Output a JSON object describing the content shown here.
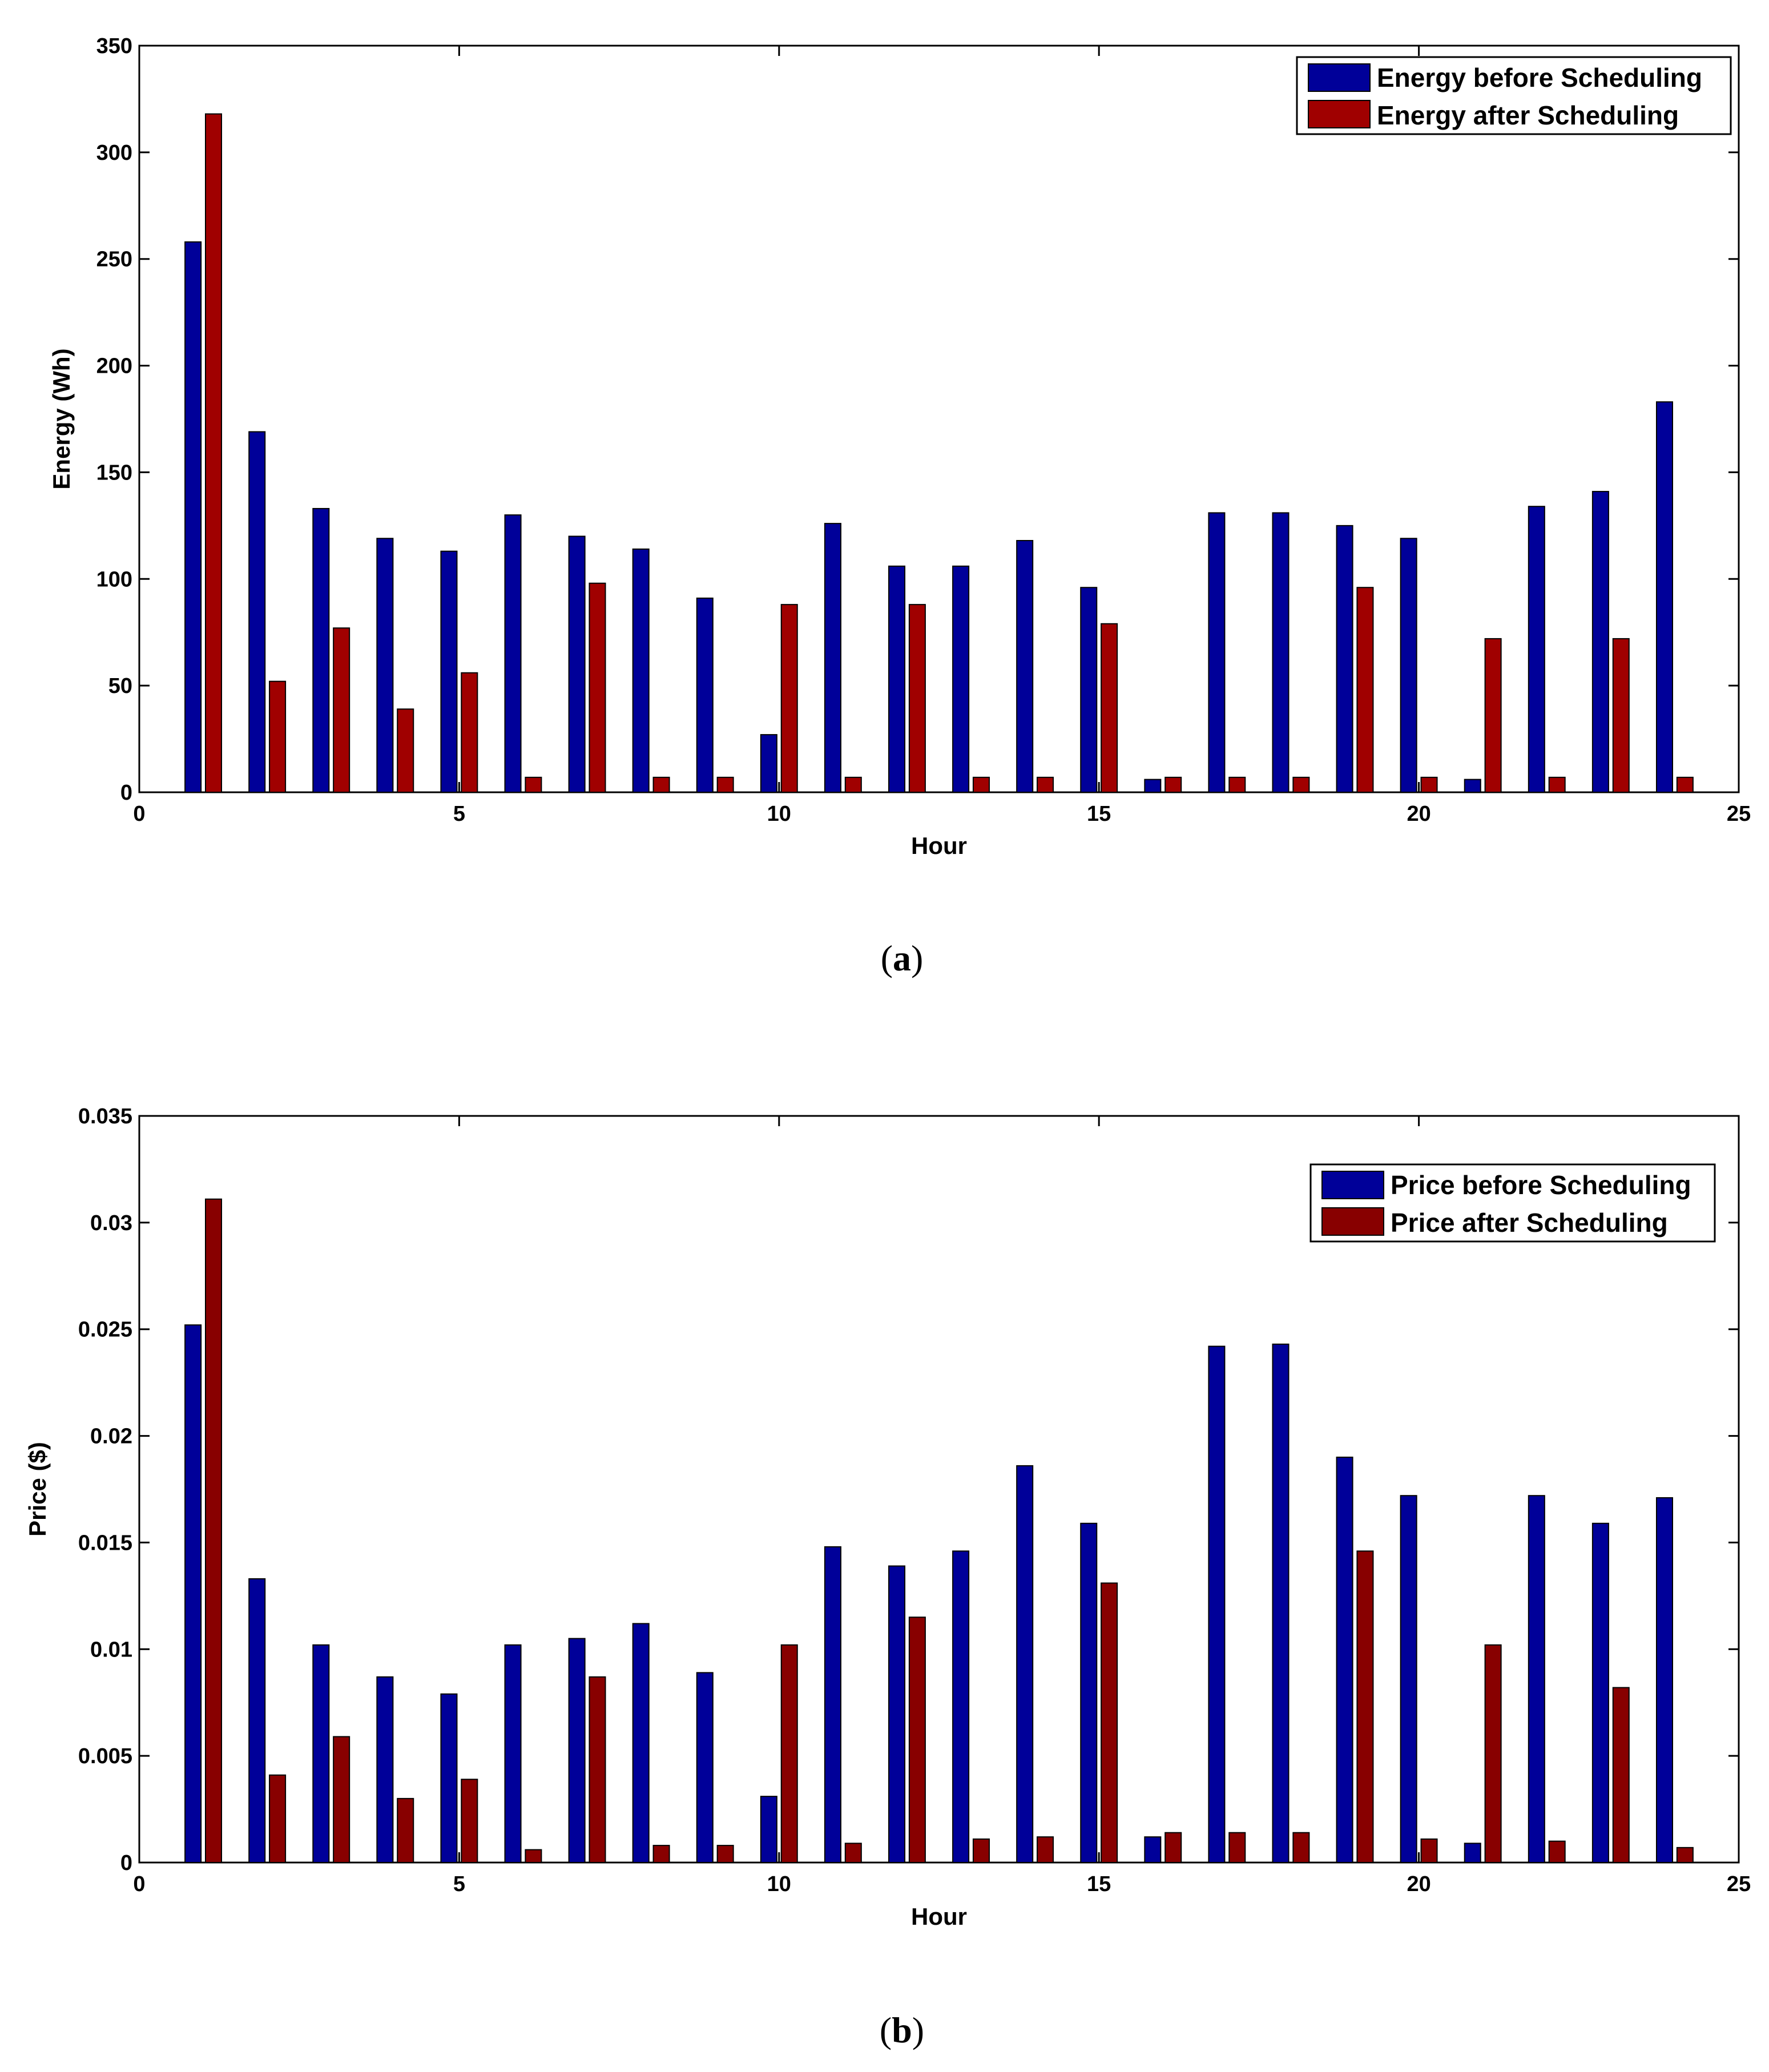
{
  "chart_data": [
    {
      "type": "bar",
      "id": "energy",
      "caption_letter": "a",
      "xlabel": "Hour",
      "ylabel": "Energy (Wh)",
      "xlim": [
        0,
        25
      ],
      "ylim": [
        0,
        350
      ],
      "xticks": [
        "0",
        "5",
        "10",
        "15",
        "20",
        "25"
      ],
      "yticks": [
        "0",
        "50",
        "100",
        "150",
        "200",
        "250",
        "300",
        "350"
      ],
      "xtick_values": [
        0,
        5,
        10,
        15,
        20,
        25
      ],
      "ytick_values": [
        0,
        50,
        100,
        150,
        200,
        250,
        300,
        350
      ],
      "categories": [
        1,
        2,
        3,
        4,
        5,
        6,
        7,
        8,
        9,
        10,
        11,
        12,
        13,
        14,
        15,
        16,
        17,
        18,
        19,
        20,
        21,
        22,
        23,
        24
      ],
      "legend_position": "top-right",
      "series": [
        {
          "name": "Energy before Scheduling",
          "color": "#000099",
          "values": [
            258,
            169,
            133,
            119,
            113,
            130,
            120,
            114,
            91,
            27,
            126,
            106,
            106,
            118,
            96,
            6,
            131,
            131,
            125,
            119,
            6,
            134,
            141,
            183
          ]
        },
        {
          "name": "Energy after Scheduling",
          "color": "#a00000",
          "values": [
            318,
            52,
            77,
            39,
            56,
            7,
            98,
            7,
            7,
            88,
            7,
            88,
            7,
            7,
            79,
            7,
            7,
            7,
            96,
            7,
            72,
            7,
            72,
            7
          ]
        }
      ]
    },
    {
      "type": "bar",
      "id": "price",
      "caption_letter": "b",
      "xlabel": "Hour",
      "ylabel": "Price ($)",
      "xlim": [
        0,
        25
      ],
      "ylim": [
        0,
        0.035
      ],
      "xticks": [
        "0",
        "5",
        "10",
        "15",
        "20",
        "25"
      ],
      "yticks": [
        "0",
        "0.005",
        "0.01",
        "0.015",
        "0.02",
        "0.025",
        "0.03",
        "0.035"
      ],
      "xtick_values": [
        0,
        5,
        10,
        15,
        20,
        25
      ],
      "ytick_values": [
        0,
        0.005,
        0.01,
        0.015,
        0.02,
        0.025,
        0.03,
        0.035
      ],
      "categories": [
        1,
        2,
        3,
        4,
        5,
        6,
        7,
        8,
        9,
        10,
        11,
        12,
        13,
        14,
        15,
        16,
        17,
        18,
        19,
        20,
        21,
        22,
        23,
        24
      ],
      "legend_position": "top-right",
      "series": [
        {
          "name": "Price before Scheduling",
          "color": "#000099",
          "values": [
            0.0252,
            0.0133,
            0.0102,
            0.0087,
            0.0079,
            0.0102,
            0.0105,
            0.0112,
            0.0089,
            0.0031,
            0.0148,
            0.0139,
            0.0146,
            0.0186,
            0.0159,
            0.0012,
            0.0242,
            0.0243,
            0.019,
            0.0172,
            0.0009,
            0.0172,
            0.0159,
            0.0171
          ]
        },
        {
          "name": "Price after Scheduling",
          "color": "#880000",
          "values": [
            0.0311,
            0.0041,
            0.0059,
            0.003,
            0.0039,
            0.0006,
            0.0087,
            0.0008,
            0.0008,
            0.0102,
            0.0009,
            0.0115,
            0.0011,
            0.0012,
            0.0131,
            0.0014,
            0.0014,
            0.0014,
            0.0146,
            0.0011,
            0.0102,
            0.001,
            0.0082,
            0.0007
          ]
        }
      ]
    }
  ]
}
